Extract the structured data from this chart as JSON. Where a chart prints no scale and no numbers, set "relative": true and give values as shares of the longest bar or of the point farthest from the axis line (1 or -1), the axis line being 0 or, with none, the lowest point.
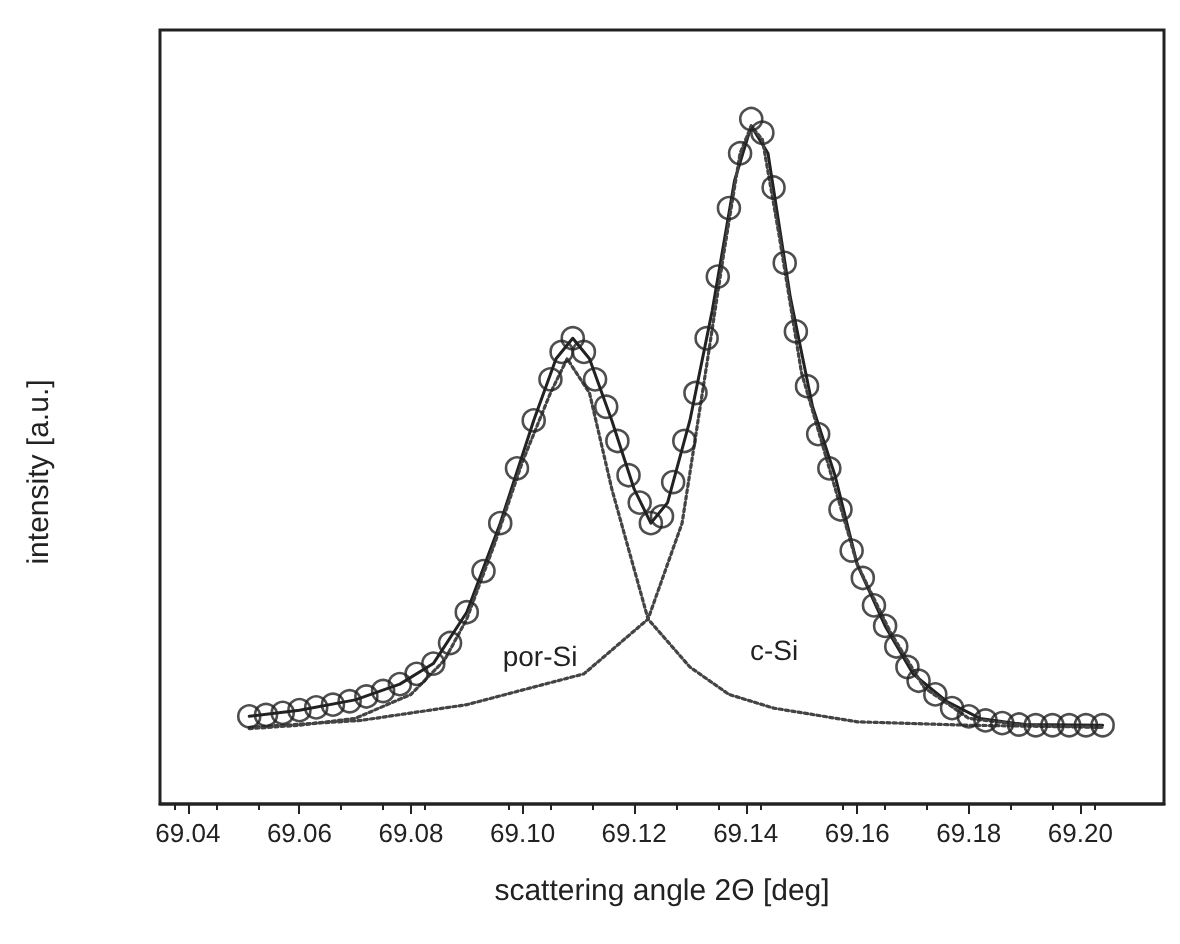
{
  "chart_data": {
    "type": "scatter",
    "xlabel": "scattering angle 2Θ [deg]",
    "ylabel": "intensity [a.u.]",
    "relative": true,
    "xlim": [
      69.035,
      69.215
    ],
    "xticks": [
      {
        "value": 69.04,
        "label": "69.04"
      },
      {
        "value": 69.06,
        "label": "69.06"
      },
      {
        "value": 69.08,
        "label": "69.08"
      },
      {
        "value": 69.1,
        "label": "69.10"
      },
      {
        "value": 69.12,
        "label": "69.12"
      },
      {
        "value": 69.14,
        "label": "69.14"
      },
      {
        "value": 69.16,
        "label": "69.16"
      },
      {
        "value": 69.18,
        "label": "69.18"
      },
      {
        "value": 69.2,
        "label": "69.20"
      }
    ],
    "annotations": [
      "por-Si",
      "c-Si"
    ],
    "series": [
      {
        "marker": "circle",
        "color": "#222222",
        "x": [
          69.051,
          69.054,
          69.057,
          69.06,
          69.063,
          69.066,
          69.069,
          69.072,
          69.075,
          69.078,
          69.081,
          69.084,
          69.087,
          69.09,
          69.093,
          69.096,
          69.099,
          69.102,
          69.105,
          69.107,
          69.109,
          69.111,
          69.113,
          69.115,
          69.117,
          69.119,
          69.121,
          69.123,
          69.125,
          69.127,
          69.129,
          69.131,
          69.133,
          69.135,
          69.137,
          69.139,
          69.141,
          69.143,
          69.145,
          69.147,
          69.149,
          69.151,
          69.153,
          69.155,
          69.157,
          69.159,
          69.161,
          69.163,
          69.165,
          69.167,
          69.169,
          69.171,
          69.174,
          69.177,
          69.18,
          69.183,
          69.186,
          69.189,
          69.192,
          69.195,
          69.198,
          69.201,
          69.204
        ],
        "values": [
          0.128,
          0.13,
          0.133,
          0.137,
          0.141,
          0.145,
          0.15,
          0.157,
          0.165,
          0.175,
          0.19,
          0.205,
          0.235,
          0.28,
          0.34,
          0.41,
          0.49,
          0.56,
          0.62,
          0.66,
          0.68,
          0.66,
          0.62,
          0.58,
          0.53,
          0.48,
          0.44,
          0.41,
          0.42,
          0.47,
          0.53,
          0.6,
          0.68,
          0.77,
          0.87,
          0.95,
          1.0,
          0.98,
          0.9,
          0.79,
          0.69,
          0.61,
          0.54,
          0.49,
          0.43,
          0.37,
          0.33,
          0.29,
          0.26,
          0.23,
          0.2,
          0.18,
          0.16,
          0.14,
          0.128,
          0.122,
          0.118,
          0.116,
          0.115,
          0.115,
          0.115,
          0.115,
          0.115
        ]
      },
      {
        "type": "line",
        "marker": "none",
        "line_style": "solid",
        "color": "#222222",
        "x": [
          69.051,
          69.06,
          69.07,
          69.078,
          69.084,
          69.09,
          69.096,
          69.102,
          69.106,
          69.109,
          69.112,
          69.116,
          69.12,
          69.123,
          69.126,
          69.13,
          69.134,
          69.138,
          69.141,
          69.144,
          69.148,
          69.152,
          69.156,
          69.16,
          69.165,
          69.17,
          69.176,
          69.182,
          69.19,
          69.204
        ],
        "values": [
          0.128,
          0.137,
          0.152,
          0.175,
          0.205,
          0.28,
          0.41,
          0.56,
          0.65,
          0.68,
          0.65,
          0.56,
          0.46,
          0.41,
          0.44,
          0.56,
          0.72,
          0.91,
          0.99,
          0.95,
          0.74,
          0.58,
          0.48,
          0.35,
          0.26,
          0.19,
          0.15,
          0.125,
          0.116,
          0.115
        ]
      },
      {
        "type": "line",
        "marker": "none",
        "line_style": "dotted",
        "color": "#444444",
        "x": [
          69.051,
          69.06,
          69.07,
          69.08,
          69.086,
          69.09,
          69.095,
          69.1,
          69.105,
          69.108,
          69.112,
          69.116,
          69.1225,
          69.13,
          69.137,
          69.145,
          69.16,
          69.18,
          69.204
        ],
        "values": [
          0.11,
          0.115,
          0.125,
          0.16,
          0.21,
          0.27,
          0.38,
          0.5,
          0.6,
          0.65,
          0.6,
          0.46,
          0.27,
          0.2,
          0.16,
          0.14,
          0.12,
          0.115,
          0.112
        ]
      },
      {
        "type": "line",
        "marker": "none",
        "line_style": "dotted",
        "color": "#444444",
        "x": [
          69.051,
          69.071,
          69.09,
          69.111,
          69.1225,
          69.1286,
          69.133,
          69.136,
          69.139,
          69.141,
          69.143,
          69.146,
          69.15,
          69.155,
          69.16,
          69.166,
          69.172,
          69.18,
          69.19,
          69.204
        ],
        "values": [
          0.112,
          0.122,
          0.145,
          0.19,
          0.27,
          0.41,
          0.64,
          0.8,
          0.95,
          0.99,
          0.97,
          0.83,
          0.63,
          0.49,
          0.35,
          0.25,
          0.17,
          0.125,
          0.115,
          0.112
        ]
      }
    ]
  }
}
